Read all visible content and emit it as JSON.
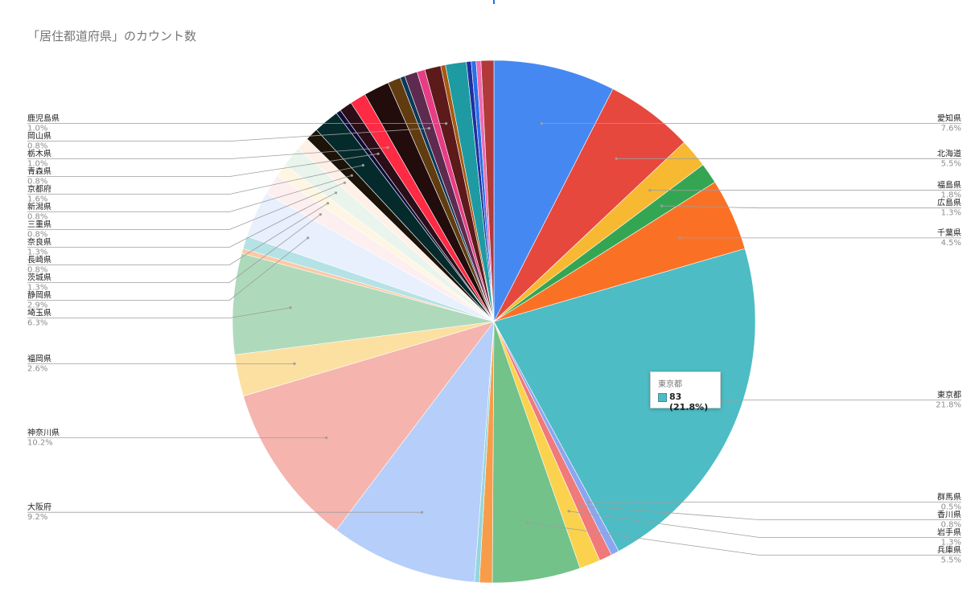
{
  "title": "「居住都道府県」のカウント数",
  "tooltip": {
    "category": "東京都",
    "value_text": "83 (21.8%)",
    "color": "#4dbcc4"
  },
  "chart_data": {
    "type": "pie",
    "title": "「居住都道府県」のカウント数",
    "slices": [
      {
        "name": "愛知県",
        "pct": 7.6,
        "color": "#4688f1",
        "side": "right",
        "show_label": true
      },
      {
        "name": "北海道",
        "pct": 5.5,
        "color": "#e7483e",
        "side": "right",
        "show_label": true
      },
      {
        "name": "福島県",
        "pct": 1.8,
        "color": "#f7b931",
        "side": "right",
        "show_label": true
      },
      {
        "name": "広島県",
        "pct": 1.3,
        "color": "#34a653",
        "side": "right",
        "show_label": true
      },
      {
        "name": "千葉県",
        "pct": 4.5,
        "color": "#fa7126",
        "side": "right",
        "show_label": true
      },
      {
        "name": "東京都",
        "pct": 21.8,
        "value": 83,
        "color": "#4dbcc4",
        "side": "right",
        "show_label": true
      },
      {
        "name": "群馬県",
        "pct": 0.5,
        "color": "#8ba6f0",
        "side": "right",
        "show_label": true
      },
      {
        "name": "香川県",
        "pct": 0.8,
        "color": "#f0797a",
        "side": "right",
        "show_label": true
      },
      {
        "name": "岩手県",
        "pct": 1.3,
        "color": "#fbd24e",
        "side": "right",
        "show_label": true
      },
      {
        "name": "兵庫県",
        "pct": 5.5,
        "color": "#72c28a",
        "side": "right",
        "show_label": true
      },
      {
        "name": "",
        "pct": 0.8,
        "color": "#f79d4a",
        "side": "none",
        "show_label": false
      },
      {
        "name": "",
        "pct": 0.3,
        "color": "#93d6dd",
        "side": "none",
        "show_label": false
      },
      {
        "name": "大阪府",
        "pct": 9.2,
        "color": "#b5cefa",
        "side": "left",
        "show_label": true
      },
      {
        "name": "神奈川県",
        "pct": 10.2,
        "color": "#f5b4ae",
        "side": "left",
        "show_label": true
      },
      {
        "name": "福岡県",
        "pct": 2.6,
        "color": "#fbe0a1",
        "side": "left",
        "show_label": true
      },
      {
        "name": "埼玉県",
        "pct": 6.3,
        "color": "#aedabb",
        "side": "left",
        "show_label": true
      },
      {
        "name": "",
        "pct": 0.3,
        "color": "#fbc9a5",
        "side": "none",
        "show_label": false
      },
      {
        "name": "",
        "pct": 0.8,
        "color": "#b5e2e5",
        "side": "none",
        "show_label": false
      },
      {
        "name": "静岡県",
        "pct": 2.9,
        "color": "#e8effd",
        "side": "left",
        "show_label": true
      },
      {
        "name": "茨城県",
        "pct": 1.3,
        "color": "#fdeff0",
        "side": "left",
        "show_label": true
      },
      {
        "name": "長崎県",
        "pct": 0.8,
        "color": "#fef6e2",
        "side": "left",
        "show_label": true
      },
      {
        "name": "奈良県",
        "pct": 1.3,
        "color": "#e9f5ec",
        "side": "left",
        "show_label": true
      },
      {
        "name": "三重県",
        "pct": 0.8,
        "color": "#fef0e6",
        "side": "left",
        "show_label": true
      },
      {
        "name": "新潟県",
        "pct": 0.8,
        "color": "#1c1309",
        "side": "left",
        "show_label": true
      },
      {
        "name": "京都府",
        "pct": 1.6,
        "color": "#052a2c",
        "side": "left",
        "show_label": true
      },
      {
        "name": "",
        "pct": 0.3,
        "color": "#0d0c3a",
        "side": "none",
        "show_label": false
      },
      {
        "name": "青森県",
        "pct": 0.8,
        "color": "#2c0e18",
        "side": "left",
        "show_label": true
      },
      {
        "name": "栃木県",
        "pct": 1.0,
        "color": "#ff2a44",
        "side": "left",
        "show_label": true
      },
      {
        "name": "",
        "pct": 1.6,
        "color": "#220c0c",
        "side": "none",
        "show_label": false
      },
      {
        "name": "",
        "pct": 0.8,
        "color": "#613c10",
        "side": "none",
        "show_label": false
      },
      {
        "name": "",
        "pct": 0.3,
        "color": "#0a3a5a",
        "side": "none",
        "show_label": false
      },
      {
        "name": "岡山県",
        "pct": 0.8,
        "color": "#5e2a4f",
        "side": "left",
        "show_label": true
      },
      {
        "name": "",
        "pct": 0.5,
        "color": "#e63d84",
        "side": "none",
        "show_label": false
      },
      {
        "name": "鹿児島県",
        "pct": 1.0,
        "color": "#5c1a1a",
        "side": "left",
        "show_label": true
      },
      {
        "name": "",
        "pct": 0.3,
        "color": "#a85a12",
        "side": "none",
        "show_label": false
      },
      {
        "name": "",
        "pct": 1.3,
        "color": "#1e9aa2",
        "side": "none",
        "show_label": false
      },
      {
        "name": "",
        "pct": 0.3,
        "color": "#1e2fa0",
        "side": "none",
        "show_label": false
      },
      {
        "name": "",
        "pct": 0.3,
        "color": "#2a6ee8",
        "side": "none",
        "show_label": false
      },
      {
        "name": "",
        "pct": 0.3,
        "color": "#f06bb0",
        "side": "none",
        "show_label": false
      },
      {
        "name": "",
        "pct": 0.8,
        "color": "#b03a3a",
        "side": "none",
        "show_label": false
      }
    ]
  }
}
